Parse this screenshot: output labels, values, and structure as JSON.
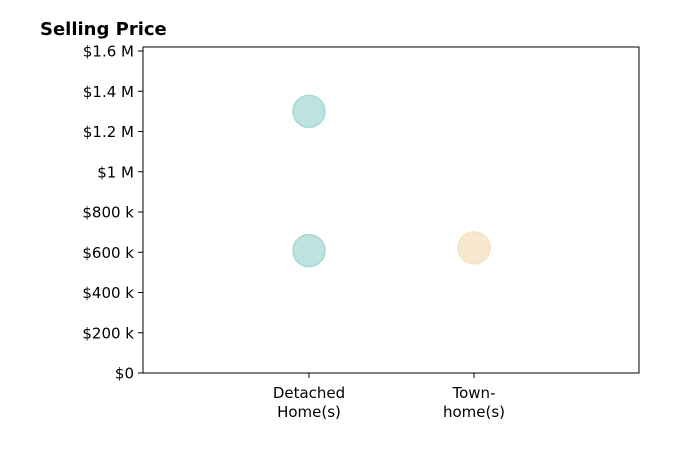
{
  "chart_data": {
    "type": "scatter",
    "title": "Selling Price",
    "xlabel": "",
    "ylabel": "",
    "categories": [
      [
        "Detached",
        "Home(s)"
      ],
      [
        "Town-",
        "home(s)"
      ]
    ],
    "ylim": [
      0,
      1620000
    ],
    "yticks": [
      {
        "value": 0,
        "label": "$0"
      },
      {
        "value": 200000,
        "label": "$200 k"
      },
      {
        "value": 400000,
        "label": "$400 k"
      },
      {
        "value": 600000,
        "label": "$600 k"
      },
      {
        "value": 800000,
        "label": "$800 k"
      },
      {
        "value": 1000000,
        "label": "$1 M"
      },
      {
        "value": 1200000,
        "label": "$1.2 M"
      },
      {
        "value": 1400000,
        "label": "$1.4 M"
      },
      {
        "value": 1600000,
        "label": "$1.6 M"
      }
    ],
    "points": [
      {
        "category": 0,
        "y": 1300000,
        "color": "#a8d8d3"
      },
      {
        "category": 0,
        "y": 608000,
        "color": "#a8d8d3"
      },
      {
        "category": 1,
        "y": 622000,
        "color": "#f6e2bd"
      }
    ],
    "grid": false,
    "legend": "none"
  }
}
